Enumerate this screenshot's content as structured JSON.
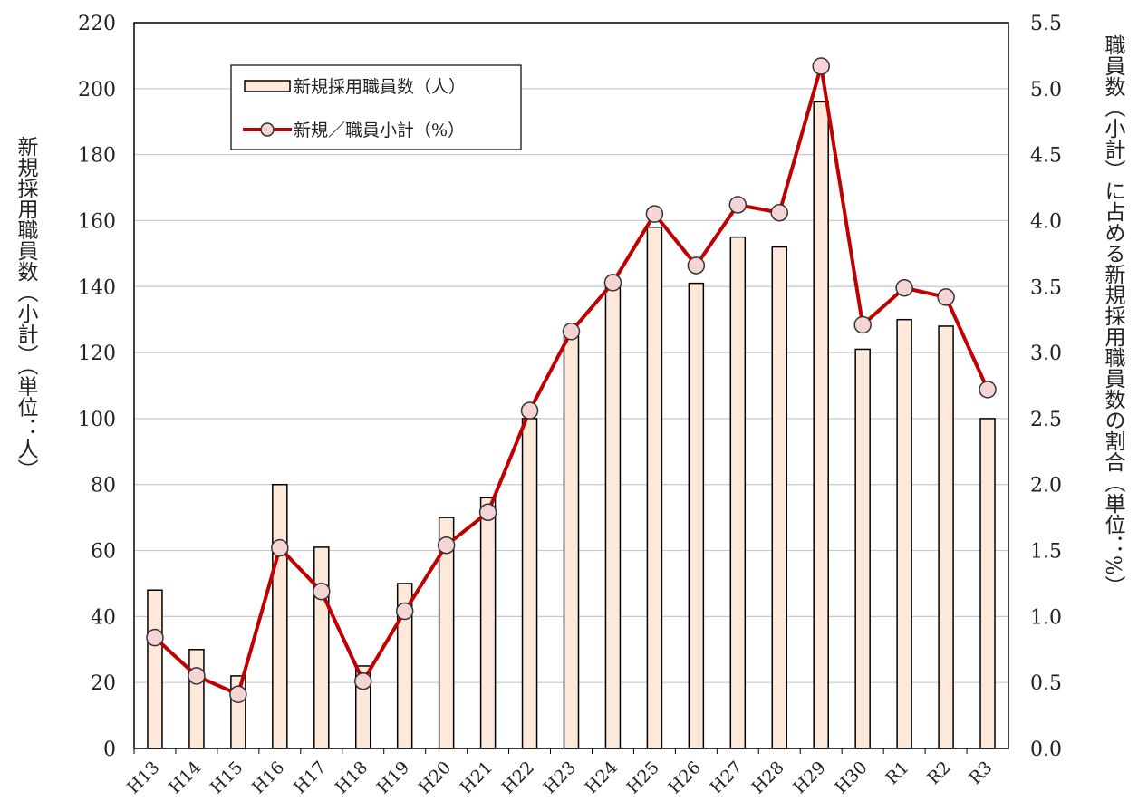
{
  "chart_data": {
    "type": "bar",
    "ylabel": "新規採用職員数（小計）（単位：人）",
    "y2label": "職員数（小計）に占める新規採用職員数の割合（単位：%）",
    "categories": [
      "H13",
      "H14",
      "H15",
      "H16",
      "H17",
      "H18",
      "H19",
      "H20",
      "H21",
      "H22",
      "H23",
      "H24",
      "H25",
      "H26",
      "H27",
      "H28",
      "H29",
      "H30",
      "R1",
      "R2",
      "R3"
    ],
    "series": [
      {
        "name": "新規採用職員数（人）",
        "type": "bar",
        "color": "#fde9d9",
        "values": [
          48,
          30,
          22,
          80,
          61,
          25,
          50,
          70,
          76,
          100,
          125,
          140,
          158,
          141,
          155,
          152,
          196,
          121,
          130,
          128,
          100
        ]
      },
      {
        "name": "新規／職員小計（%）",
        "type": "line",
        "axis": "y2",
        "color": "#c00000",
        "values": [
          0.84,
          0.55,
          0.41,
          1.52,
          1.19,
          0.51,
          1.04,
          1.54,
          1.79,
          2.56,
          3.16,
          3.53,
          4.05,
          3.66,
          4.12,
          4.06,
          5.17,
          3.21,
          3.49,
          3.42,
          2.72
        ]
      }
    ],
    "ylim": [
      0,
      220
    ],
    "yticks": [
      0,
      20,
      40,
      60,
      80,
      100,
      120,
      140,
      160,
      180,
      200,
      220
    ],
    "y2lim": [
      0,
      5.5
    ],
    "y2ticks": [
      {
        "value": 0,
        "label": "0.0"
      },
      0.5,
      {
        "value": 1,
        "label": "1.0"
      },
      1.5,
      {
        "value": 2,
        "label": "2.0"
      },
      2.5,
      {
        "value": 3,
        "label": "3.0"
      },
      3.5,
      {
        "value": 4,
        "label": "4.0"
      },
      4.5,
      {
        "value": 5,
        "label": "5.0"
      },
      5.5
    ],
    "grid": true
  }
}
